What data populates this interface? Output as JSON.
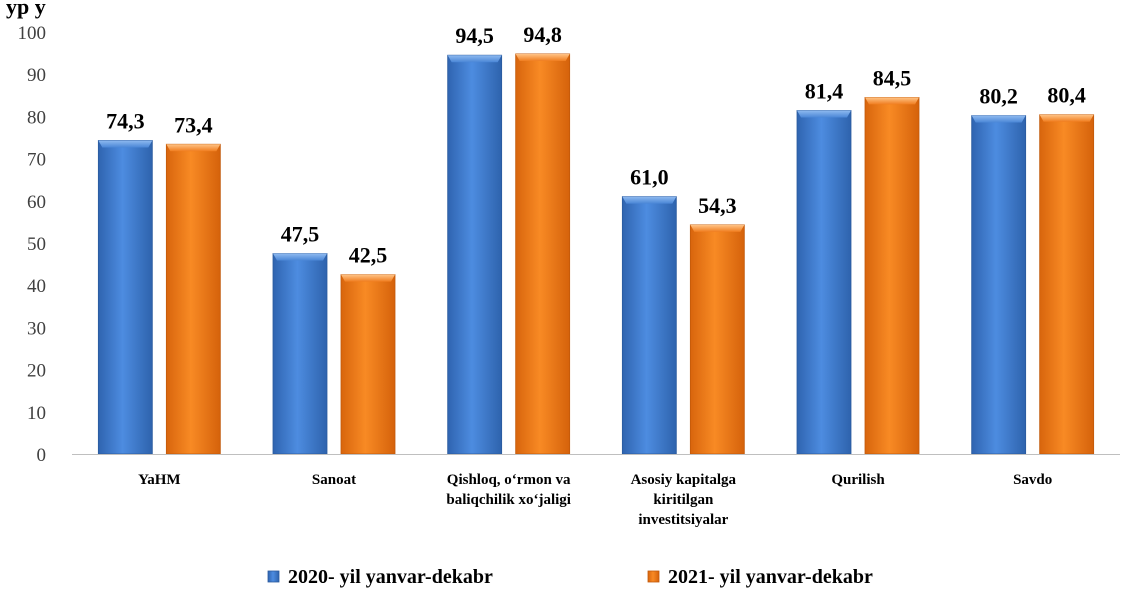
{
  "title_fragment": "yp           y",
  "chart_data": {
    "type": "bar",
    "categories": [
      [
        "YaHM"
      ],
      [
        "Sanoat"
      ],
      [
        "Qishloq, o‘rmon va",
        "baliqchilik xo‘jaligi"
      ],
      [
        "Asosiy kapitalga",
        "kiritilgan",
        "investitsiyalar"
      ],
      [
        "Qurilish"
      ],
      [
        "Savdo"
      ]
    ],
    "series": [
      {
        "name": "2020- yil yanvar-dekabr",
        "color": "#4a86d6",
        "values": [
          74.3,
          47.5,
          94.5,
          61.0,
          81.4,
          80.2
        ],
        "labels": [
          "74,3",
          "47,5",
          "94,5",
          "61,0",
          "81,4",
          "80,2"
        ]
      },
      {
        "name": "2021- yil yanvar-dekabr",
        "color": "#f07d1f",
        "values": [
          73.4,
          42.5,
          94.8,
          54.3,
          84.5,
          80.4
        ],
        "labels": [
          "73,4",
          "42,5",
          "94,8",
          "54,3",
          "84,5",
          "80,4"
        ]
      }
    ],
    "yticks": [
      "0",
      "10",
      "20",
      "30",
      "40",
      "50",
      "60",
      "70",
      "80",
      "90",
      "100"
    ],
    "ylim": [
      0,
      100
    ],
    "grid": false,
    "legend_position": "bottom"
  }
}
